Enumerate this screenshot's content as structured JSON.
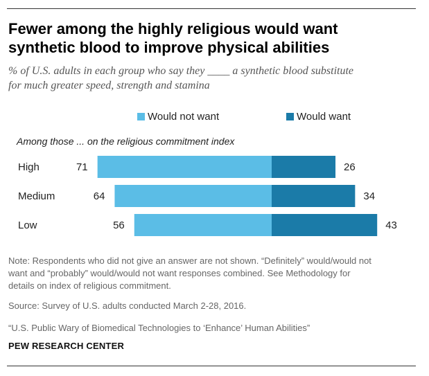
{
  "header": {
    "title_line1": "Fewer among the highly religious would want",
    "title_line2": "synthetic blood to improve physical abilities",
    "subtitle_line1": "% of U.S. adults in each group who say they ____ a synthetic blood substitute",
    "subtitle_line2": "for much greater speed, strength and stamina"
  },
  "legend": {
    "not_want_label": "Would not want",
    "want_label": "Would want"
  },
  "axis_title": "Among those ... on the religious commitment index",
  "colors": {
    "not_want": "#5bbde6",
    "want": "#1b7ba8"
  },
  "chart_data": {
    "type": "bar",
    "orientation": "horizontal-diverging",
    "categories": [
      "High",
      "Medium",
      "Low"
    ],
    "series": [
      {
        "name": "Would not want",
        "values": [
          71,
          64,
          56
        ]
      },
      {
        "name": "Would want",
        "values": [
          26,
          34,
          43
        ]
      }
    ]
  },
  "footer": {
    "note_line1": "Note: Respondents who did not give an answer are not shown. “Definitely” would/would not",
    "note_line2": "want and “probably” would/would not want responses combined. See Methodology for",
    "note_line3": "details on index of religious commitment.",
    "source": "Source: Survey of U.S. adults conducted March 2-28, 2016.",
    "report": "“U.S. Public Wary of Biomedical Technologies to ‘Enhance’ Human Abilities”",
    "brand": "PEW RESEARCH CENTER"
  }
}
